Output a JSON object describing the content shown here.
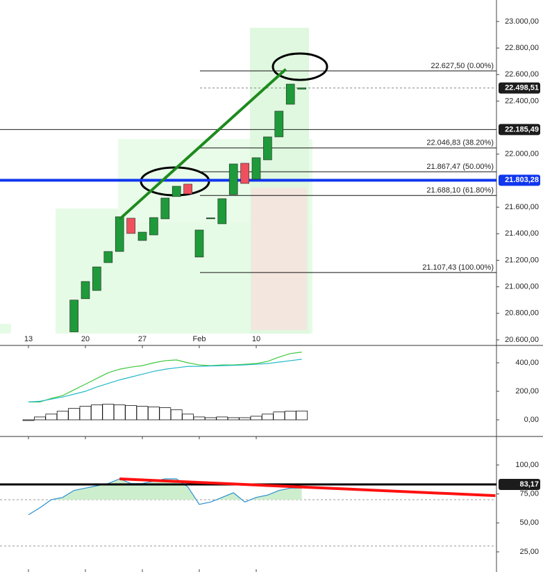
{
  "chart_data": [
    {
      "type": "candlestick",
      "categories": [
        "13",
        null,
        null,
        null,
        null,
        "20",
        null,
        null,
        null,
        null,
        "27",
        null,
        null,
        null,
        null,
        "Feb",
        null,
        null,
        null,
        null,
        "10",
        null,
        null,
        null,
        null
      ],
      "open": [
        null,
        null,
        null,
        null,
        20660,
        20910,
        20972,
        21182,
        21266,
        21517,
        21349,
        21391,
        21512,
        21680,
        21774,
        21224,
        21515,
        21475,
        21695,
        21931,
        21811,
        21957,
        22130,
        22376,
        22490
      ],
      "close": [
        null,
        null,
        null,
        null,
        20900,
        21040,
        21150,
        21266,
        21528,
        21402,
        21412,
        21522,
        21669,
        21758,
        21700,
        21428,
        21520,
        21664,
        21926,
        21779,
        21973,
        22130,
        22324,
        22528,
        22500
      ],
      "up_color": "#1f9a3a",
      "down_color": "#f0505e",
      "ylim": [
        20558,
        23162
      ],
      "yticks": [
        {
          "value": 23000,
          "label": "23.000,00"
        },
        {
          "value": 22800,
          "label": "22.800,00"
        },
        {
          "value": 22600,
          "label": "22.600,00"
        },
        {
          "value": 22400,
          "label": "22.400,00"
        },
        {
          "value": 22000,
          "label": "22.000,00"
        },
        {
          "value": 21600,
          "label": "21.600,00"
        },
        {
          "value": 21400,
          "label": "21.400,00"
        },
        {
          "value": 21200,
          "label": "21.200,00"
        },
        {
          "value": 21000,
          "label": "21.000,00"
        },
        {
          "value": 20800,
          "label": "20.800,00"
        },
        {
          "value": 20600,
          "label": "20.600,00"
        }
      ],
      "fib_levels": [
        {
          "value": 22627.5,
          "label": "22.627,50 (0.00%)"
        },
        {
          "value": 22046.83,
          "label": "22.046,83 (38.20%)"
        },
        {
          "value": 21867.47,
          "label": "21.867,47 (50.00%)"
        },
        {
          "value": 21688.1,
          "label": "21.688,10 (61.80%)"
        },
        {
          "value": 21107.43,
          "label": "21.107,43 (100.00%)"
        }
      ],
      "price_lines": [
        {
          "value": 22498.51,
          "label": "22.498,51",
          "color": "#1c1c1c"
        },
        {
          "value": 22185.49,
          "label": "22.185,49",
          "color": "#1c1c1c"
        },
        {
          "value": 21803.28,
          "label": "21.803,28",
          "color": "#1036ee"
        }
      ],
      "trendline": {
        "x": [
          8,
          22.6
        ],
        "values": [
          21510,
          22640
        ],
        "color": "#1d8a1d"
      }
    },
    {
      "type": "histogram_lines",
      "values": [
        -5,
        20,
        40,
        60,
        80,
        95,
        105,
        110,
        105,
        100,
        95,
        90,
        85,
        70,
        40,
        20,
        15,
        20,
        15,
        15,
        25,
        40,
        55,
        60,
        62
      ],
      "series": [
        {
          "name": "fast",
          "color": "#3cc83c",
          "values": [
            125,
            125,
            150,
            170,
            210,
            250,
            290,
            330,
            355,
            370,
            380,
            400,
            415,
            420,
            400,
            385,
            380,
            385,
            385,
            390,
            395,
            410,
            440,
            465,
            475
          ]
        },
        {
          "name": "slow",
          "color": "#22b8c8",
          "values": [
            125,
            130,
            145,
            160,
            180,
            200,
            230,
            255,
            280,
            300,
            320,
            340,
            355,
            365,
            375,
            375,
            378,
            380,
            382,
            385,
            390,
            395,
            405,
            415,
            425
          ]
        }
      ],
      "ylim": [
        -117,
        522
      ],
      "yticks": [
        {
          "value": 400,
          "label": "400,00"
        },
        {
          "value": 200,
          "label": "200,00"
        },
        {
          "value": 0,
          "label": "0,00"
        }
      ]
    },
    {
      "type": "line",
      "series": [
        {
          "name": "oscillator",
          "color": "#2a8fd0",
          "values": [
            57,
            63,
            70,
            72,
            78,
            80,
            82,
            84,
            88,
            84,
            84,
            86,
            88,
            88,
            81,
            66,
            68,
            72,
            76,
            68,
            72,
            74,
            78,
            80,
            80
          ]
        }
      ],
      "ylim": [
        7.6,
        124.6
      ],
      "yticks": [
        {
          "value": 100,
          "label": "100,00"
        },
        {
          "value": 75,
          "label": "75,00"
        },
        {
          "value": 50,
          "label": "50,00"
        },
        {
          "value": 25,
          "label": "25,00"
        }
      ],
      "bands": [
        70,
        30
      ],
      "level": {
        "value": 83.17,
        "label": "83,17",
        "color": "#000000"
      },
      "trendline": {
        "x": [
          8,
          41
        ],
        "values": [
          88,
          73.5
        ],
        "color": "#ff1010"
      }
    }
  ]
}
